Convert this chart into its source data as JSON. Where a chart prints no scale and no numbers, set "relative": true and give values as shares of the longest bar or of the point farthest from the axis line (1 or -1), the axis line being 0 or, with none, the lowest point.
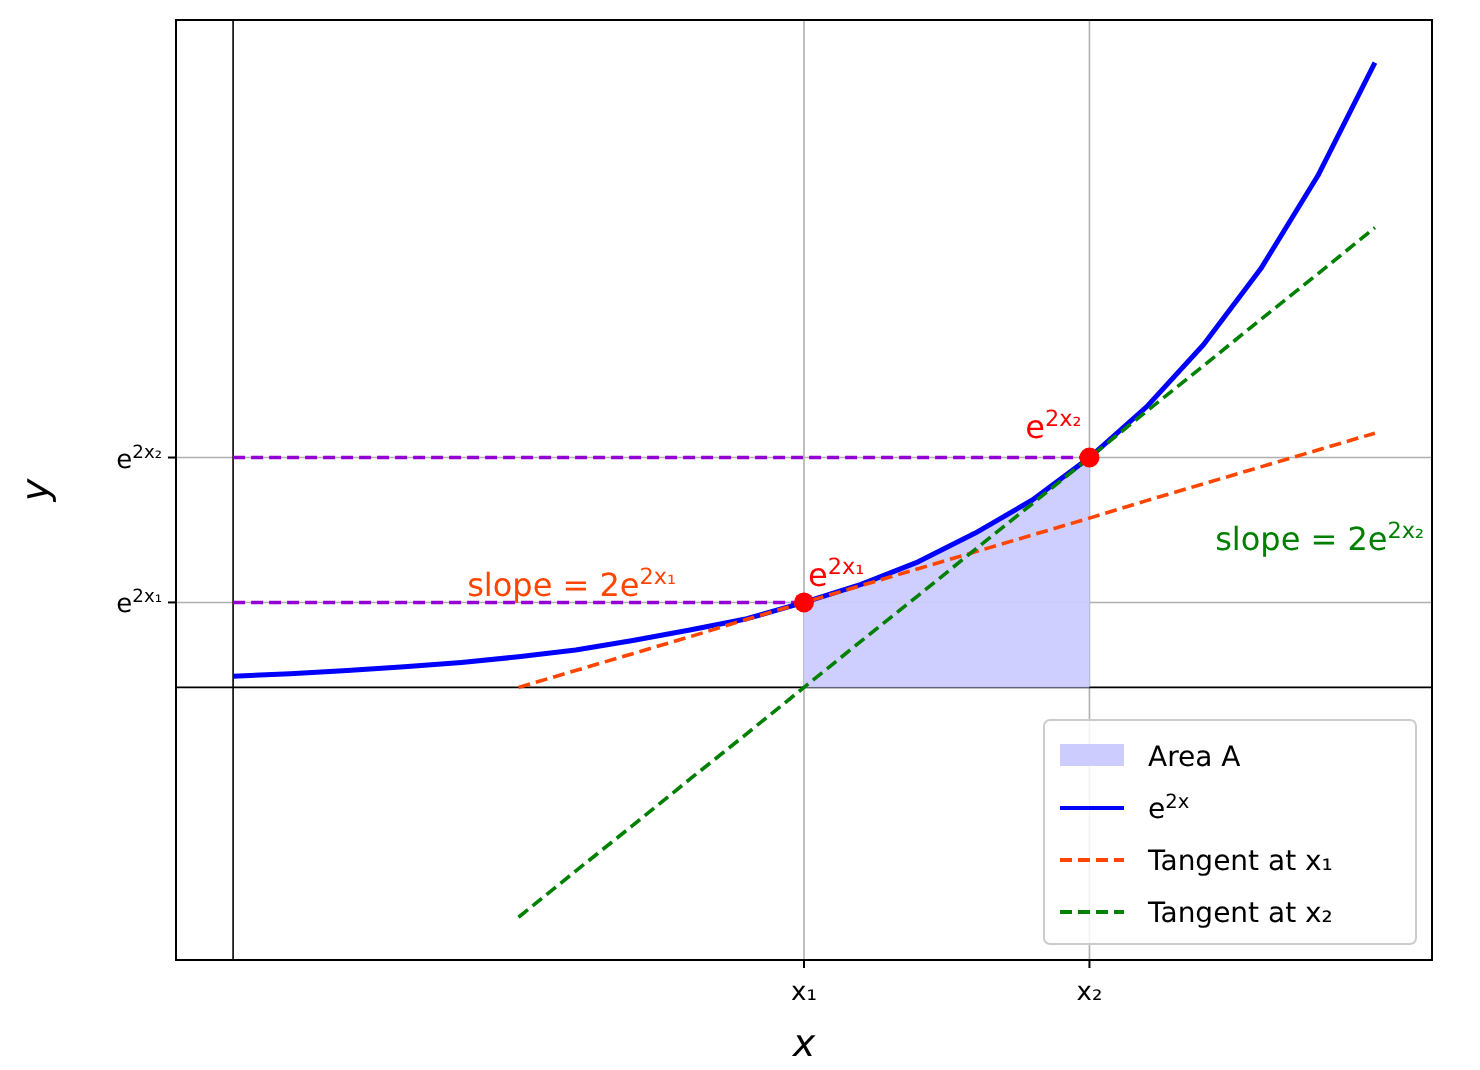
{
  "chart_data": {
    "type": "line",
    "relative": true,
    "xlabel": "x",
    "ylabel": "y",
    "legend": "bottom right",
    "grid": "x",
    "categories": [
      null,
      null,
      null,
      null,
      null,
      null,
      null,
      null,
      null,
      null,
      "x₁",
      null,
      null,
      null,
      null,
      "x₂",
      null,
      null,
      null,
      null,
      null
    ],
    "ref_lines": [
      {
        "axis": "y",
        "value": 0.136,
        "label": "e$^{2x₁}$",
        "color": "#b0b0b0"
      },
      {
        "axis": "y",
        "value": 0.368,
        "label": "e$^{2x₂}$",
        "color": "#b0b0b0"
      }
    ],
    "series": [
      {
        "type": "area",
        "name": "Area A",
        "color": "#ccccff",
        "values": [
          null,
          null,
          null,
          null,
          null,
          null,
          null,
          null,
          null,
          null,
          0.136,
          0.165,
          0.201,
          0.247,
          0.3,
          0.368,
          null,
          null,
          null,
          null,
          null
        ]
      },
      {
        "color": "#9400d3",
        "line_style": "dashed",
        "values": [
          0.136,
          0.136,
          0.136,
          0.136,
          0.136,
          0.136,
          0.136,
          0.136,
          0.136,
          0.136,
          0.136,
          null,
          null,
          null,
          null,
          null,
          null,
          null,
          null,
          null,
          null
        ]
      },
      {
        "color": "#9400d3",
        "line_style": "dashed",
        "values": [
          0.368,
          0.368,
          0.368,
          0.368,
          0.368,
          0.368,
          0.368,
          0.368,
          0.368,
          0.368,
          0.368,
          0.368,
          0.368,
          0.368,
          0.368,
          0.368,
          null,
          null,
          null,
          null,
          null
        ]
      },
      {
        "name": "e$^{2x}$",
        "color": "#0000ff",
        "values": [
          0.018,
          0.022,
          0.027,
          0.033,
          0.04,
          0.049,
          0.06,
          0.075,
          0.092,
          0.11,
          0.136,
          0.165,
          0.201,
          0.247,
          0.3,
          0.368,
          0.449,
          0.549,
          0.67,
          0.819,
          1
        ]
      },
      {
        "name": "Tangent at x₁",
        "color": "#ff4500",
        "line_style": "dashed",
        "values": [
          null,
          null,
          null,
          null,
          null,
          0,
          0.027,
          0.054,
          0.081,
          0.109,
          0.136,
          0.163,
          0.19,
          0.217,
          0.244,
          0.271,
          0.299,
          0.326,
          0.353,
          0.38,
          0.407
        ]
      },
      {
        "name": "Tangent at x₂",
        "color": "#008000",
        "line_style": "dashed",
        "values": [
          null,
          null,
          null,
          null,
          null,
          -0.368,
          -0.294,
          -0.221,
          -0.147,
          -0.074,
          0,
          0.074,
          0.147,
          0.221,
          0.294,
          0.368,
          0.442,
          0.515,
          0.589,
          0.662,
          0.736
        ]
      },
      {
        "type": "scatter",
        "color": "#ff0000",
        "marker": "circle",
        "values": [
          null,
          null,
          null,
          null,
          null,
          null,
          null,
          null,
          null,
          null,
          0.136,
          null,
          null,
          null,
          null,
          0.368,
          null,
          null,
          null,
          null,
          null
        ]
      }
    ],
    "annotations": [
      {
        "text": "e$^{2x₁}$",
        "x": "x₁",
        "y": 0.136
      },
      "slope = 2e$^{2x₁}$",
      {
        "text": "e$^{2x₂}$",
        "x": "x₂",
        "y": 0.368
      },
      "slope = 2e$^{2x₂}$"
    ]
  }
}
